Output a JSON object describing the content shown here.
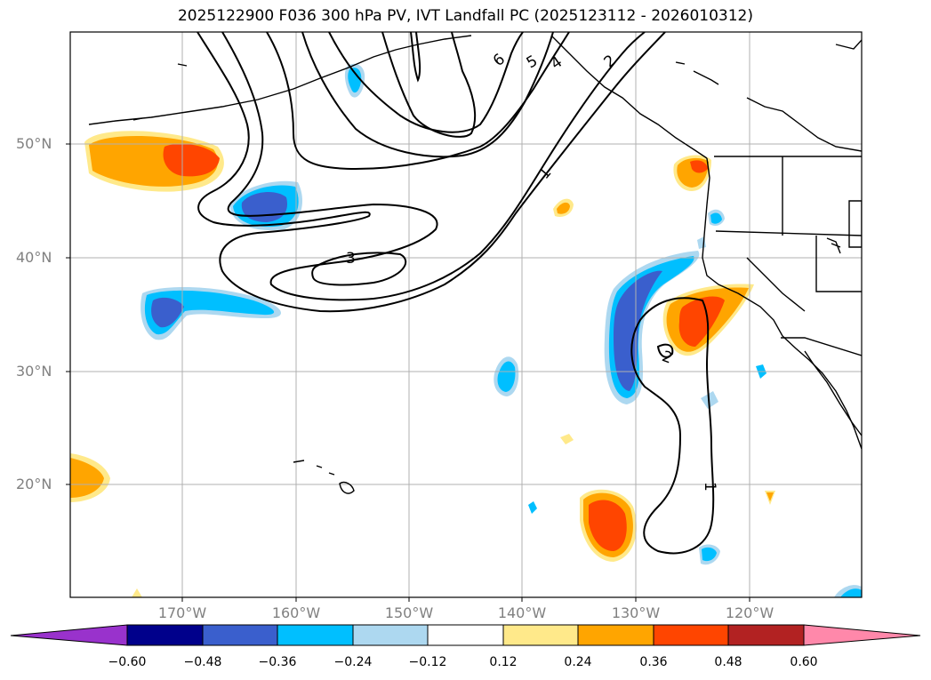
{
  "title": "2025122900 F036 300 hPa PV, IVT Landfall PC (2025123112 - 2026010312)",
  "lat_labels": [
    "50°N",
    "40°N",
    "30°N",
    "20°N"
  ],
  "lon_labels": [
    "170°W",
    "160°W",
    "150°W",
    "140°W",
    "130°W",
    "120°W"
  ],
  "colorbar": {
    "ticks": [
      "−0.60",
      "−0.48",
      "−0.36",
      "−0.24",
      "−0.12",
      "0.12",
      "0.24",
      "0.36",
      "0.48",
      "0.60"
    ],
    "colors": [
      "#9932cc",
      "#00008b",
      "#3a5fcd",
      "#00bfff",
      "#add8f0",
      "#ffffff",
      "#ffe98a",
      "#ffa500",
      "#ff4500",
      "#b22222",
      "#ff88aa"
    ]
  },
  "contour_labels": [
    "6",
    "5",
    "4",
    "2",
    "1",
    "3",
    "2",
    "1"
  ],
  "colors": {
    "grid": "#b0b0b0",
    "axis_text": "#808080",
    "contour": "#000000"
  }
}
